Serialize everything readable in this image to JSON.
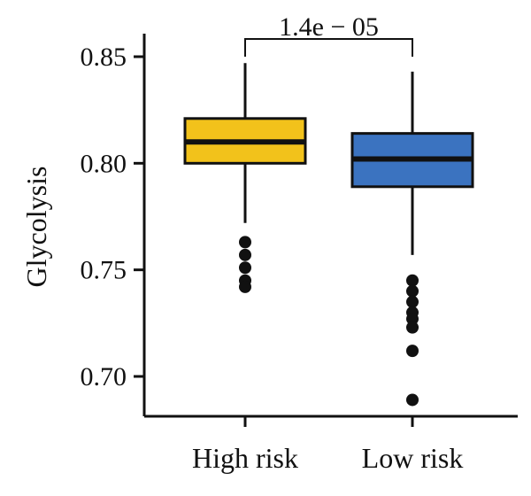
{
  "chart_data": {
    "type": "box",
    "ylabel": "Glycolysis",
    "ylim": [
      0.68,
      0.86
    ],
    "yticks": [
      0.7,
      0.75,
      0.8,
      0.85
    ],
    "ytick_labels": [
      "0.70",
      "0.75",
      "0.80",
      "0.85"
    ],
    "categories": [
      "High risk",
      "Low risk"
    ],
    "boxes": [
      {
        "name": "High risk",
        "color": "#F2C21B",
        "whisker_low": 0.772,
        "q1": 0.8,
        "median": 0.81,
        "q3": 0.821,
        "whisker_high": 0.847,
        "outliers": [
          0.763,
          0.757,
          0.751,
          0.745,
          0.742
        ]
      },
      {
        "name": "Low risk",
        "color": "#3B73C0",
        "whisker_low": 0.757,
        "q1": 0.789,
        "median": 0.802,
        "q3": 0.814,
        "whisker_high": 0.843,
        "outliers": [
          0.745,
          0.74,
          0.735,
          0.73,
          0.727,
          0.723,
          0.712,
          0.689
        ]
      }
    ],
    "annotation": {
      "text": "1.4e − 05",
      "between": [
        "High risk",
        "Low risk"
      ]
    },
    "grid": false,
    "legend": "none"
  }
}
